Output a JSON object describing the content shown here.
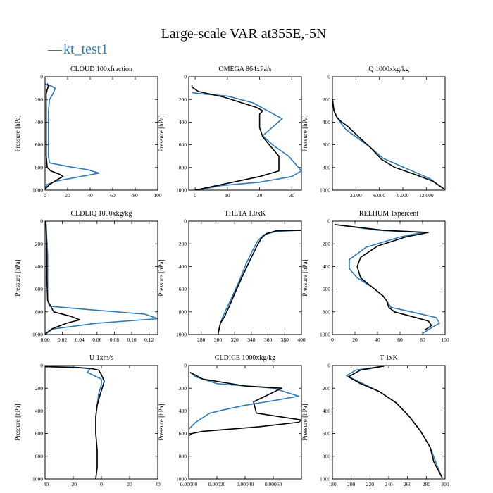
{
  "title": "Large-scale VAR at355E,-5N",
  "legend": {
    "label": "kt_test1",
    "line_symbol": "—"
  },
  "series_styles": [
    {
      "key": "blue",
      "color": "#2b7bb9"
    },
    {
      "key": "black",
      "color": "#000000"
    }
  ],
  "chart_data": [
    {
      "type": "line",
      "title": "CLOUD  100xfraction",
      "ylabel": "Pressure [hPa]",
      "xlim": [
        0,
        100
      ],
      "ylim": [
        0,
        1000
      ],
      "y_inverted": true,
      "xticks": [
        0,
        20,
        40,
        60,
        80,
        100
      ],
      "xtick_labels": [
        "0",
        "20",
        "40",
        "60",
        "80",
        "100"
      ],
      "yticks": [
        0,
        200,
        400,
        600,
        800,
        1000
      ],
      "ytick_labels": [
        "0",
        "200",
        "400",
        "600",
        "800",
        "1000"
      ],
      "series": [
        {
          "color": "#2b7bb9",
          "x": [
            0,
            1,
            5,
            9,
            7,
            4,
            3,
            3,
            3,
            3,
            3,
            4,
            20,
            38,
            48,
            10,
            2,
            0
          ],
          "y": [
            60,
            70,
            80,
            100,
            150,
            200,
            300,
            400,
            500,
            600,
            700,
            760,
            790,
            820,
            850,
            920,
            950,
            980
          ]
        },
        {
          "color": "#000000",
          "x": [
            2,
            3,
            2,
            1,
            1,
            1,
            1,
            1,
            1,
            1,
            2,
            5,
            13,
            16,
            12,
            4,
            0
          ],
          "y": [
            60,
            80,
            110,
            150,
            200,
            300,
            400,
            500,
            600,
            700,
            800,
            830,
            860,
            880,
            900,
            950,
            990
          ]
        }
      ]
    },
    {
      "type": "line",
      "title": "OMEGA  864xPa/s",
      "ylabel": "Pressure [hPa]",
      "xlim": [
        -2,
        33
      ],
      "ylim": [
        0,
        1000
      ],
      "y_inverted": true,
      "xticks": [
        0,
        10,
        20,
        30
      ],
      "xtick_labels": [
        "0",
        "10",
        "20",
        "30"
      ],
      "yticks": [
        0,
        200,
        400,
        600,
        800,
        1000
      ],
      "ytick_labels": [
        "0",
        "200",
        "400",
        "600",
        "800",
        "1000"
      ],
      "series": [
        {
          "color": "#2b7bb9",
          "x": [
            -1,
            2,
            10,
            18,
            27,
            21,
            24,
            29,
            33,
            30,
            20,
            8,
            1
          ],
          "y": [
            140,
            150,
            170,
            230,
            370,
            520,
            600,
            700,
            830,
            880,
            930,
            960,
            1000
          ]
        },
        {
          "color": "#000000",
          "x": [
            -1,
            -1,
            0,
            1,
            9,
            19,
            21,
            20,
            20,
            21,
            23,
            26,
            26,
            20,
            10,
            0
          ],
          "y": [
            70,
            90,
            110,
            130,
            180,
            270,
            300,
            330,
            450,
            530,
            600,
            700,
            830,
            880,
            940,
            1000
          ]
        }
      ]
    },
    {
      "type": "line",
      "title": "Q  1000xkg/kg",
      "ylabel": "Pressure [hPa]",
      "xlim": [
        0,
        14.4
      ],
      "ylim": [
        0,
        1000
      ],
      "y_inverted": true,
      "xticks": [
        3,
        6,
        9,
        12
      ],
      "xtick_labels": [
        "3.000",
        "6.000",
        "9.000",
        "12.000"
      ],
      "yticks": [
        0,
        200,
        400,
        600,
        800,
        1000
      ],
      "ytick_labels": [
        "0",
        "200",
        "400",
        "600",
        "800",
        "1000"
      ],
      "series": [
        {
          "color": "#2b7bb9",
          "x": [
            0.01,
            0.2,
            0.6,
            1.2,
            1.8,
            3.0,
            4.8,
            6.5,
            8.5,
            10.5,
            12.5,
            14.0
          ],
          "y": [
            200,
            300,
            360,
            420,
            470,
            530,
            620,
            720,
            780,
            840,
            900,
            980
          ]
        },
        {
          "color": "#000000",
          "x": [
            0.01,
            0.2,
            0.6,
            1.2,
            2.0,
            3.2,
            4.8,
            6.3,
            8.0,
            10.5,
            12.8,
            14.3
          ],
          "y": [
            200,
            300,
            360,
            400,
            440,
            520,
            620,
            730,
            800,
            860,
            920,
            990
          ]
        }
      ]
    },
    {
      "type": "line",
      "title": "CLDLIQ  1000xkg/kg",
      "ylabel": "Pressure [hPa]",
      "xlim": [
        0,
        0.13
      ],
      "ylim": [
        0,
        1000
      ],
      "y_inverted": true,
      "xticks": [
        0,
        0.02,
        0.04,
        0.06,
        0.08,
        0.1,
        0.12
      ],
      "xtick_labels": [
        "0.00",
        "0.02",
        "0.04",
        "0.06",
        "0.08",
        "0.10",
        "0.12"
      ],
      "yticks": [
        0,
        200,
        400,
        600,
        800,
        1000
      ],
      "ytick_labels": [
        "0",
        "200",
        "400",
        "600",
        "800",
        "1000"
      ],
      "series": [
        {
          "color": "#2b7bb9",
          "x": [
            0.001,
            0.003,
            0.003,
            0.003,
            0.005,
            0.05,
            0.115,
            0.13,
            0.06,
            0.01,
            0.0
          ],
          "y": [
            0,
            300,
            500,
            700,
            750,
            780,
            820,
            860,
            900,
            950,
            990
          ]
        },
        {
          "color": "#000000",
          "x": [
            0.001,
            0.002,
            0.002,
            0.003,
            0.01,
            0.03,
            0.04,
            0.025,
            0.008,
            0.0
          ],
          "y": [
            0,
            300,
            500,
            700,
            800,
            840,
            870,
            900,
            950,
            1000
          ]
        }
      ]
    },
    {
      "type": "line",
      "title": "THETA  1.0xK",
      "ylabel": "Pressure [hPa]",
      "xlim": [
        265,
        400
      ],
      "ylim": [
        0,
        1000
      ],
      "y_inverted": true,
      "xticks": [
        280,
        300,
        320,
        340,
        360,
        380,
        400
      ],
      "xtick_labels": [
        "280",
        "300",
        "320",
        "340",
        "360",
        "380",
        "400"
      ],
      "yticks": [
        0,
        200,
        400,
        600,
        800,
        1000
      ],
      "ytick_labels": [
        "0",
        "200",
        "400",
        "600",
        "800",
        "1000"
      ],
      "series": [
        {
          "color": "#2b7bb9",
          "x": [
            400,
            370,
            355,
            348,
            342,
            334,
            326,
            318,
            311,
            306,
            303,
            300
          ],
          "y": [
            80,
            90,
            120,
            170,
            250,
            370,
            520,
            650,
            760,
            840,
            900,
            980
          ]
        },
        {
          "color": "#000000",
          "x": [
            400,
            370,
            358,
            352,
            346,
            338,
            329,
            320,
            313,
            308,
            303,
            300
          ],
          "y": [
            80,
            85,
            110,
            150,
            230,
            350,
            490,
            640,
            760,
            840,
            900,
            1000
          ]
        }
      ]
    },
    {
      "type": "line",
      "title": "RELHUM  1xpercent",
      "ylabel": "Pressure [hPa]",
      "xlim": [
        0,
        100
      ],
      "ylim": [
        0,
        1000
      ],
      "y_inverted": true,
      "xticks": [
        0,
        20,
        40,
        60,
        80,
        100
      ],
      "xtick_labels": [
        "0",
        "20",
        "40",
        "60",
        "80",
        "100"
      ],
      "yticks": [
        0,
        200,
        400,
        600,
        800,
        1000
      ],
      "ytick_labels": [
        "0",
        "200",
        "400",
        "600",
        "800",
        "1000"
      ],
      "series": [
        {
          "color": "#2b7bb9",
          "x": [
            2,
            40,
            80,
            60,
            30,
            15,
            15,
            22,
            35,
            45,
            48,
            50,
            52,
            70,
            92,
            95,
            88,
            80
          ],
          "y": [
            30,
            80,
            100,
            140,
            230,
            340,
            420,
            500,
            580,
            660,
            700,
            730,
            760,
            800,
            850,
            900,
            940,
            990
          ]
        },
        {
          "color": "#000000",
          "x": [
            2,
            45,
            85,
            65,
            40,
            25,
            22,
            25,
            35,
            45,
            48,
            50,
            55,
            70,
            85,
            88,
            82
          ],
          "y": [
            30,
            80,
            100,
            140,
            220,
            320,
            400,
            500,
            580,
            660,
            700,
            760,
            800,
            840,
            880,
            920,
            960
          ]
        }
      ]
    },
    {
      "type": "line",
      "title": "U  1xm/s",
      "ylabel": "Pressure [hPa]",
      "xlim": [
        -40,
        40
      ],
      "ylim": [
        0,
        1000
      ],
      "y_inverted": true,
      "xticks": [
        -40,
        -20,
        0,
        20,
        40
      ],
      "xtick_labels": [
        "-40",
        "-20",
        "0",
        "20",
        "40"
      ],
      "yticks": [
        0,
        200,
        400,
        600,
        800,
        1000
      ],
      "ytick_labels": [
        "0",
        "200",
        "400",
        "600",
        "800",
        "1000"
      ],
      "series": [
        {
          "color": "#2b7bb9",
          "x": [
            -40,
            -15,
            -8,
            -10,
            -5,
            0,
            0,
            -2,
            -3,
            -4,
            -4,
            -3,
            -3,
            -4
          ],
          "y": [
            10,
            20,
            30,
            60,
            90,
            120,
            170,
            250,
            350,
            450,
            600,
            750,
            900,
            1000
          ]
        },
        {
          "color": "#000000",
          "x": [
            -40,
            -20,
            -8,
            -2,
            0,
            2,
            1,
            -1,
            -3,
            -4,
            -4,
            -3,
            -3,
            -4
          ],
          "y": [
            10,
            15,
            25,
            40,
            80,
            140,
            180,
            260,
            350,
            450,
            600,
            750,
            900,
            1000
          ]
        }
      ]
    },
    {
      "type": "line",
      "title": "CLDICE  1000xkg/kg",
      "ylabel": "Pressure [hPa]",
      "xlim": [
        0,
        0.0008
      ],
      "ylim": [
        0,
        1000
      ],
      "y_inverted": true,
      "xticks": [
        0,
        0.0002,
        0.0004,
        0.0006
      ],
      "xtick_labels": [
        "0.00000",
        "0.00020",
        "0.00040",
        "0.00060"
      ],
      "yticks": [
        0,
        200,
        400,
        600,
        800,
        1000
      ],
      "ytick_labels": [
        "0",
        "200",
        "400",
        "600",
        "800",
        "1000"
      ],
      "series": [
        {
          "color": "#2b7bb9",
          "x": [
            1e-05,
            5e-05,
            0.0002,
            0.0006,
            0.00078,
            0.0006,
            0.0004,
            0.00025,
            0.00015,
            5e-05,
            0.0
          ],
          "y": [
            60,
            100,
            160,
            200,
            270,
            310,
            350,
            390,
            420,
            500,
            560
          ]
        },
        {
          "color": "#000000",
          "x": [
            1e-05,
            0.0001,
            0.0004,
            0.00066,
            0.00056,
            0.00046,
            0.00048,
            0.0008,
            0.00078,
            0.0005,
            0.0001,
            2e-05,
            0.0
          ],
          "y": [
            60,
            120,
            180,
            200,
            260,
            320,
            420,
            480,
            500,
            540,
            580,
            600,
            620
          ]
        }
      ]
    },
    {
      "type": "line",
      "title": "T  1xK",
      "ylabel": "Pressure [hPa]",
      "xlim": [
        180,
        300
      ],
      "ylim": [
        0,
        1000
      ],
      "y_inverted": true,
      "xticks": [
        180,
        200,
        220,
        240,
        260,
        280,
        300
      ],
      "xtick_labels": [
        "180",
        "200",
        "220",
        "240",
        "260",
        "280",
        "300"
      ],
      "yticks": [
        0,
        200,
        400,
        600,
        800,
        1000
      ],
      "ytick_labels": [
        "0",
        "200",
        "400",
        "600",
        "800",
        "1000"
      ],
      "series": [
        {
          "color": "#2b7bb9",
          "x": [
            235,
            205,
            195,
            210,
            230,
            248,
            262,
            274,
            284,
            290,
            296
          ],
          "y": [
            5,
            40,
            90,
            150,
            230,
            330,
            450,
            580,
            720,
            850,
            980
          ]
        },
        {
          "color": "#000000",
          "x": [
            235,
            210,
            197,
            210,
            230,
            248,
            262,
            274,
            284,
            288,
            297
          ],
          "y": [
            5,
            40,
            100,
            160,
            230,
            330,
            450,
            580,
            720,
            850,
            990
          ]
        }
      ]
    }
  ]
}
